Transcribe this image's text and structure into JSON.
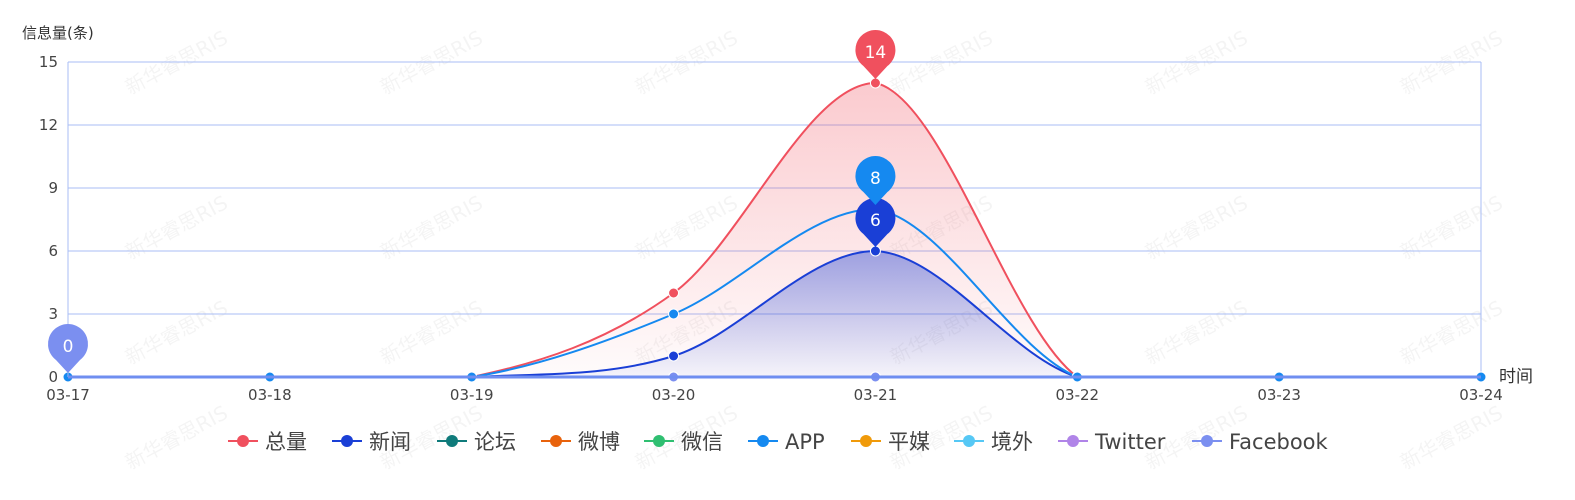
{
  "chart_data": {
    "type": "area",
    "ylabel": "信息量(条)",
    "xlabel": "时间",
    "ylim": [
      0,
      15
    ],
    "yticks": [
      0,
      3,
      6,
      9,
      12,
      15
    ],
    "categories": [
      "03-17",
      "03-18",
      "03-19",
      "03-20",
      "03-21",
      "03-22",
      "03-23",
      "03-24"
    ],
    "grid": true,
    "smooth": true,
    "legend_position": "bottom",
    "series": [
      {
        "name": "总量",
        "color": "#f0505e",
        "values": [
          0,
          0,
          0,
          4,
          14,
          0,
          0,
          0
        ],
        "area": true,
        "marker_value": 14,
        "marker_index": 4
      },
      {
        "name": "新闻",
        "color": "#1a3fd6",
        "values": [
          0,
          0,
          0,
          1,
          6,
          0,
          0,
          0
        ],
        "area": true,
        "marker_value": 6,
        "marker_index": 4
      },
      {
        "name": "论坛",
        "color": "#0f7b7b",
        "values": [
          0,
          0,
          0,
          0,
          0,
          0,
          0,
          0
        ]
      },
      {
        "name": "微博",
        "color": "#e8620c",
        "values": [
          0,
          0,
          0,
          0,
          0,
          0,
          0,
          0
        ]
      },
      {
        "name": "微信",
        "color": "#2fbf71",
        "values": [
          0,
          0,
          0,
          0,
          0,
          0,
          0,
          0
        ]
      },
      {
        "name": "APP",
        "color": "#1589f0",
        "values": [
          0,
          0,
          0,
          3,
          8,
          0,
          0,
          0
        ],
        "marker_value": 8,
        "marker_index": 4
      },
      {
        "name": "平媒",
        "color": "#f09a0a",
        "values": [
          0,
          0,
          0,
          0,
          0,
          0,
          0,
          0
        ]
      },
      {
        "name": "境外",
        "color": "#56c8f5",
        "values": [
          0,
          0,
          0,
          0,
          0,
          0,
          0,
          0
        ]
      },
      {
        "name": "Twitter",
        "color": "#b084e8",
        "values": [
          0,
          0,
          0,
          0,
          0,
          0,
          0,
          0
        ]
      },
      {
        "name": "Facebook",
        "color": "#7b8ff0",
        "values": [
          0,
          0,
          0,
          0,
          0,
          0,
          0,
          0
        ],
        "marker_value": 0,
        "marker_index": 0
      }
    ],
    "watermark": "新华睿思RIS"
  }
}
